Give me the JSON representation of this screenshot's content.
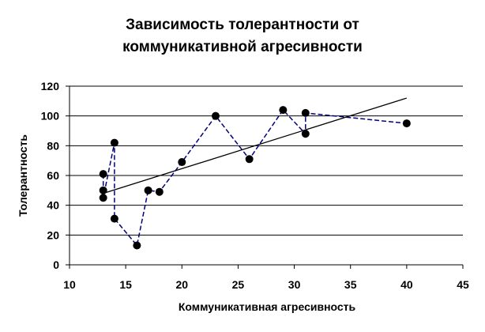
{
  "chart_data": {
    "type": "scatter",
    "title_lines": [
      "Зависимость толерантности от",
      "коммуникативной агресивности"
    ],
    "xlabel": "Коммуникативная агресивность",
    "ylabel": "Толерантность",
    "xlim": [
      10,
      45
    ],
    "ylim": [
      0,
      120
    ],
    "xticks": [
      10,
      15,
      20,
      25,
      30,
      35,
      40,
      45
    ],
    "yticks": [
      0,
      20,
      40,
      60,
      80,
      100,
      120
    ],
    "grid": "horizontal",
    "legend": "none",
    "series": [
      {
        "style": "markers-with-dashed-line",
        "color": "#000080",
        "marker_color": "#000000",
        "points": [
          [
            13,
            61
          ],
          [
            13,
            50
          ],
          [
            13,
            45
          ],
          [
            14,
            82
          ],
          [
            14,
            31
          ],
          [
            16,
            13
          ],
          [
            17,
            50
          ],
          [
            18,
            49
          ],
          [
            20,
            69
          ],
          [
            23,
            100
          ],
          [
            26,
            71
          ],
          [
            29,
            104
          ],
          [
            31,
            88
          ],
          [
            31,
            102
          ],
          [
            40,
            95
          ]
        ]
      }
    ],
    "trendline": {
      "style": "solid",
      "color": "#000000",
      "from": [
        13,
        48
      ],
      "to": [
        40,
        112
      ]
    }
  }
}
